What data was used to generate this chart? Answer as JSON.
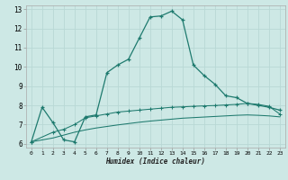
{
  "xlabel": "Humidex (Indice chaleur)",
  "background_color": "#cde8e5",
  "grid_color": "#b8d8d5",
  "line_color": "#1e7a6e",
  "xlim": [
    -0.5,
    23.5
  ],
  "ylim": [
    5.8,
    13.2
  ],
  "xticks": [
    0,
    1,
    2,
    3,
    4,
    5,
    6,
    7,
    8,
    9,
    10,
    11,
    12,
    13,
    14,
    15,
    16,
    17,
    18,
    19,
    20,
    21,
    22,
    23
  ],
  "yticks": [
    6,
    7,
    8,
    9,
    10,
    11,
    12,
    13
  ],
  "series1_x": [
    0,
    1,
    2,
    3,
    4,
    5,
    6,
    7,
    8,
    9,
    10,
    11,
    12,
    13,
    14,
    15,
    16,
    17,
    18,
    19,
    20,
    21,
    22,
    23
  ],
  "series1_y": [
    6.1,
    7.9,
    7.1,
    6.2,
    6.1,
    7.4,
    7.5,
    9.7,
    10.1,
    10.4,
    11.5,
    12.6,
    12.65,
    12.9,
    12.45,
    10.1,
    9.55,
    9.1,
    8.5,
    8.4,
    8.1,
    8.0,
    7.9,
    7.75
  ],
  "series2_x": [
    0,
    2,
    3,
    4,
    5,
    6,
    7,
    8,
    9,
    10,
    11,
    12,
    13,
    14,
    15,
    16,
    17,
    18,
    19,
    20,
    21,
    22,
    23
  ],
  "series2_y": [
    6.1,
    6.6,
    6.75,
    7.0,
    7.35,
    7.45,
    7.55,
    7.65,
    7.7,
    7.75,
    7.8,
    7.85,
    7.9,
    7.92,
    7.95,
    7.97,
    7.99,
    8.02,
    8.05,
    8.1,
    8.05,
    7.95,
    7.55
  ],
  "series3_x": [
    0,
    2,
    3,
    4,
    5,
    6,
    7,
    8,
    9,
    10,
    11,
    12,
    13,
    14,
    15,
    16,
    17,
    18,
    19,
    20,
    21,
    22,
    23
  ],
  "series3_y": [
    6.1,
    6.3,
    6.45,
    6.6,
    6.72,
    6.82,
    6.9,
    6.98,
    7.05,
    7.12,
    7.18,
    7.23,
    7.28,
    7.33,
    7.36,
    7.39,
    7.42,
    7.45,
    7.48,
    7.5,
    7.48,
    7.45,
    7.4
  ]
}
